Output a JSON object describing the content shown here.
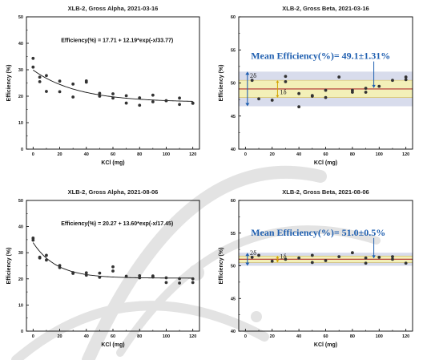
{
  "colors": {
    "point": "#333333",
    "fit": "#111111",
    "mean_line": "#b03030",
    "band_2s": "#d8dcec",
    "band_1s": "#f3f0b8",
    "annotation_blue": "#1f5fb0",
    "one_sigma_arrow": "#d4a400",
    "watermark": "#e3e3e3"
  },
  "chart_data": [
    {
      "type": "scatter",
      "title": "XLB-2, Gross Alpha, 2021-03-16",
      "annotation": "Efficiency(%) = 17.71 + 12.19*exp(-x/33.77)",
      "xlabel": "KCl (mg)",
      "ylabel": "Efficiency (%)",
      "xlim": [
        -5,
        125
      ],
      "ylim": [
        0,
        50
      ],
      "xticks": [
        0,
        20,
        40,
        60,
        80,
        100,
        120
      ],
      "yticks": [
        0,
        10,
        20,
        30,
        40,
        50
      ],
      "fit": {
        "a": 17.71,
        "b": 12.19,
        "t": 33.77
      },
      "points": [
        [
          0,
          34.3
        ],
        [
          0,
          31.0
        ],
        [
          5,
          27.2
        ],
        [
          5,
          25.5
        ],
        [
          10,
          27.8
        ],
        [
          10,
          21.8
        ],
        [
          20,
          25.7
        ],
        [
          20,
          21.7
        ],
        [
          30,
          24.6
        ],
        [
          30,
          19.7
        ],
        [
          40,
          25.8
        ],
        [
          40,
          25.3
        ],
        [
          50,
          21.1
        ],
        [
          50,
          20.0
        ],
        [
          60,
          20.9
        ],
        [
          60,
          19.3
        ],
        [
          70,
          17.4
        ],
        [
          70,
          20.2
        ],
        [
          80,
          19.4
        ],
        [
          80,
          16.6
        ],
        [
          90,
          20.4
        ],
        [
          90,
          17.9
        ],
        [
          100,
          18.3
        ],
        [
          100,
          18.3
        ],
        [
          110,
          19.3
        ],
        [
          110,
          16.9
        ],
        [
          120,
          17.4
        ],
        [
          120,
          17.3
        ]
      ]
    },
    {
      "type": "scatter",
      "title": "XLB-2, Gross Beta, 2021-03-16",
      "annotation": "Mean Efficiency(%)= 49.1±1.31%",
      "sigma_labels": [
        "2δ",
        "1δ"
      ],
      "xlabel": "KCl (mg)",
      "ylabel": "Efficiency (%)",
      "xlim": [
        -5,
        125
      ],
      "ylim": [
        40,
        60
      ],
      "xticks": [
        0,
        20,
        40,
        60,
        80,
        100,
        120
      ],
      "yticks": [
        40,
        45,
        50,
        55,
        60
      ],
      "mean": 49.1,
      "sd": 1.31,
      "points": [
        [
          5,
          50.4
        ],
        [
          10,
          47.6
        ],
        [
          20,
          47.4
        ],
        [
          30,
          51.0
        ],
        [
          30,
          50.2
        ],
        [
          40,
          46.4
        ],
        [
          40,
          48.4
        ],
        [
          50,
          48.0
        ],
        [
          50,
          48.1
        ],
        [
          60,
          47.8
        ],
        [
          60,
          48.9
        ],
        [
          70,
          50.9
        ],
        [
          80,
          48.6
        ],
        [
          80,
          48.9
        ],
        [
          90,
          49.2
        ],
        [
          90,
          48.6
        ],
        [
          100,
          49.5
        ],
        [
          110,
          50.4
        ],
        [
          120,
          50.9
        ],
        [
          120,
          50.5
        ]
      ]
    },
    {
      "type": "scatter",
      "title": "XLB-2, Gross Alpha, 2021-08-06",
      "annotation": "Efficiency(%) = 20.27 + 13.60*exp(-x/17.45)",
      "xlabel": "KCl (mg)",
      "ylabel": "Efficiency (%)",
      "xlim": [
        -5,
        125
      ],
      "ylim": [
        0,
        50
      ],
      "xticks": [
        0,
        20,
        40,
        60,
        80,
        100,
        120
      ],
      "yticks": [
        0,
        10,
        20,
        30,
        40,
        50
      ],
      "fit": {
        "a": 20.27,
        "b": 13.6,
        "t": 17.45
      },
      "points": [
        [
          0,
          35.6
        ],
        [
          0,
          34.8
        ],
        [
          5,
          28.3
        ],
        [
          5,
          28.0
        ],
        [
          10,
          29.0
        ],
        [
          10,
          27.2
        ],
        [
          20,
          25.1
        ],
        [
          20,
          24.3
        ],
        [
          30,
          22.4
        ],
        [
          30,
          22.1
        ],
        [
          40,
          22.3
        ],
        [
          40,
          21.4
        ],
        [
          50,
          22.2
        ],
        [
          50,
          20.6
        ],
        [
          60,
          24.6
        ],
        [
          60,
          23.0
        ],
        [
          70,
          21.0
        ],
        [
          80,
          21.2
        ],
        [
          80,
          20.4
        ],
        [
          90,
          20.7
        ],
        [
          90,
          21.1
        ],
        [
          100,
          18.6
        ],
        [
          100,
          20.4
        ],
        [
          110,
          20.1
        ],
        [
          110,
          18.4
        ],
        [
          120,
          20.0
        ],
        [
          120,
          18.6
        ]
      ]
    },
    {
      "type": "scatter",
      "title": "XLB-2, Gross Beta, 2021-08-06",
      "annotation": "Mean Efficiency(%)= 51.0±0.5%",
      "sigma_labels": [
        "2δ",
        "1δ"
      ],
      "xlabel": "KCl (mg)",
      "ylabel": "Efficiency (%)",
      "xlim": [
        -5,
        125
      ],
      "ylim": [
        40,
        60
      ],
      "xticks": [
        0,
        20,
        40,
        60,
        80,
        100,
        120
      ],
      "yticks": [
        40,
        45,
        50,
        55,
        60
      ],
      "mean": 51.0,
      "sd": 0.5,
      "points": [
        [
          5,
          51.3
        ],
        [
          10,
          51.6
        ],
        [
          20,
          50.7
        ],
        [
          30,
          51.0
        ],
        [
          40,
          51.2
        ],
        [
          50,
          51.6
        ],
        [
          50,
          50.5
        ],
        [
          60,
          50.8
        ],
        [
          70,
          51.4
        ],
        [
          80,
          52.0
        ],
        [
          90,
          51.2
        ],
        [
          90,
          50.4
        ],
        [
          100,
          51.3
        ],
        [
          110,
          51.4
        ],
        [
          110,
          51.0
        ],
        [
          120,
          50.4
        ]
      ]
    }
  ]
}
